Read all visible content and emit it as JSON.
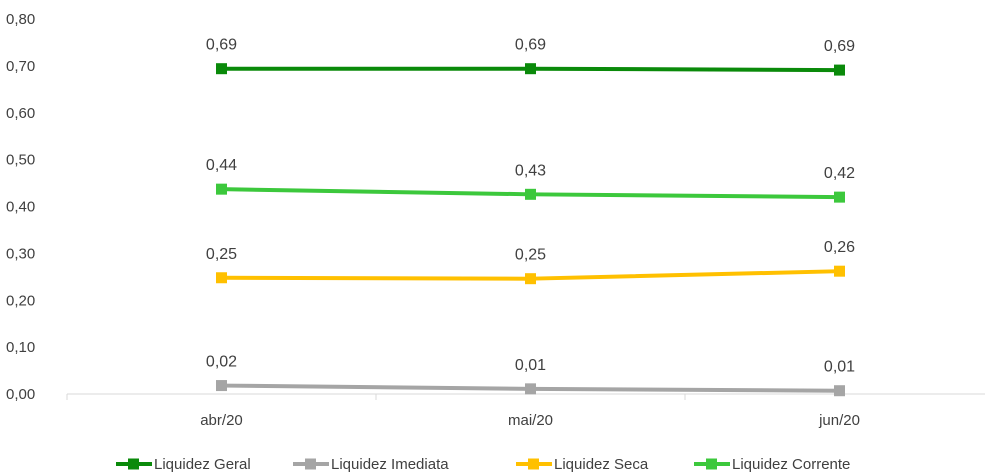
{
  "chart_data": {
    "type": "line",
    "title": "",
    "xlabel": "",
    "ylabel": "",
    "categories": [
      "abr/20",
      "mai/20",
      "jun/20"
    ],
    "ylim": [
      0,
      0.8
    ],
    "yticks": [
      "0,00",
      "0,10",
      "0,20",
      "0,30",
      "0,40",
      "0,50",
      "0,60",
      "0,70",
      "0,80"
    ],
    "grid": false,
    "legend": "bottom",
    "series": [
      {
        "name": "Liquidez Geral",
        "color": "#0A8A0A",
        "values": [
          0.694,
          0.694,
          0.691
        ],
        "labels": [
          "0,69",
          "0,69",
          "0,69"
        ]
      },
      {
        "name": "Liquidez  Imediata",
        "color": "#A5A5A5",
        "values": [
          0.018,
          0.011,
          0.007
        ],
        "labels": [
          "0,02",
          "0,01",
          "0,01"
        ]
      },
      {
        "name": "Liquidez Seca",
        "color": "#FFC000",
        "values": [
          0.248,
          0.246,
          0.262
        ],
        "labels": [
          "0,25",
          "0,25",
          "0,26"
        ]
      },
      {
        "name": "Liquidez Corrente",
        "color": "#3CC83C",
        "values": [
          0.437,
          0.426,
          0.42
        ],
        "labels": [
          "0,44",
          "0,43",
          "0,42"
        ]
      }
    ]
  }
}
